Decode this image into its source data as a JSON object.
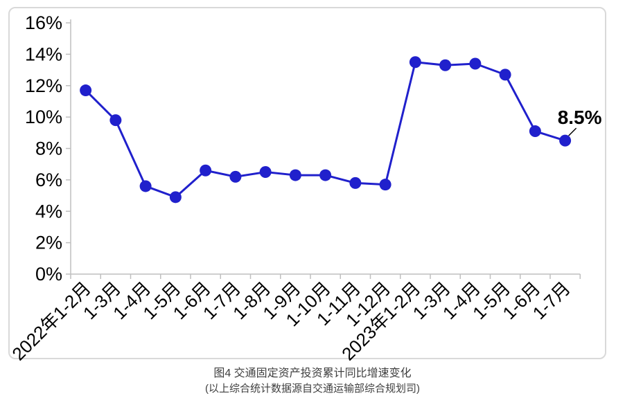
{
  "chart_data": {
    "type": "line",
    "title": "图4  交通固定资产投资累计同比增速变化",
    "subtitle": "(以上综合统计数据源自交通运输部综合规划司)",
    "categories": [
      "2022年1-2月",
      "1-3月",
      "1-4月",
      "1-5月",
      "1-6月",
      "1-7月",
      "1-8月",
      "1-9月",
      "1-10月",
      "1-11月",
      "1-12月",
      "2023年1-2月",
      "1-3月",
      "1-4月",
      "1-5月",
      "1-6月",
      "1-7月"
    ],
    "series": [
      {
        "name": "交通固定资产投资累计同比增速",
        "values": [
          11.7,
          9.8,
          5.6,
          4.9,
          6.6,
          6.2,
          6.5,
          6.3,
          6.3,
          5.8,
          5.7,
          13.5,
          13.3,
          13.4,
          12.7,
          9.1,
          8.5
        ]
      }
    ],
    "ylim": [
      0,
      16
    ],
    "ytick_step": 2,
    "ytick_labels": [
      "0%",
      "2%",
      "4%",
      "6%",
      "8%",
      "10%",
      "12%",
      "14%",
      "16%"
    ],
    "xlabel": "",
    "ylabel": "",
    "grid": false,
    "legend": "none",
    "annotation": {
      "text": "8.5%",
      "target_index": 16
    },
    "colors": {
      "line": "#2020cc",
      "marker": "#2020cc",
      "axis": "#bfbfbf",
      "tick_text": "#000000",
      "caption_text": "#3f3f3f",
      "frame_border": "#d9d9d9",
      "annotation_text": "#000000"
    }
  }
}
